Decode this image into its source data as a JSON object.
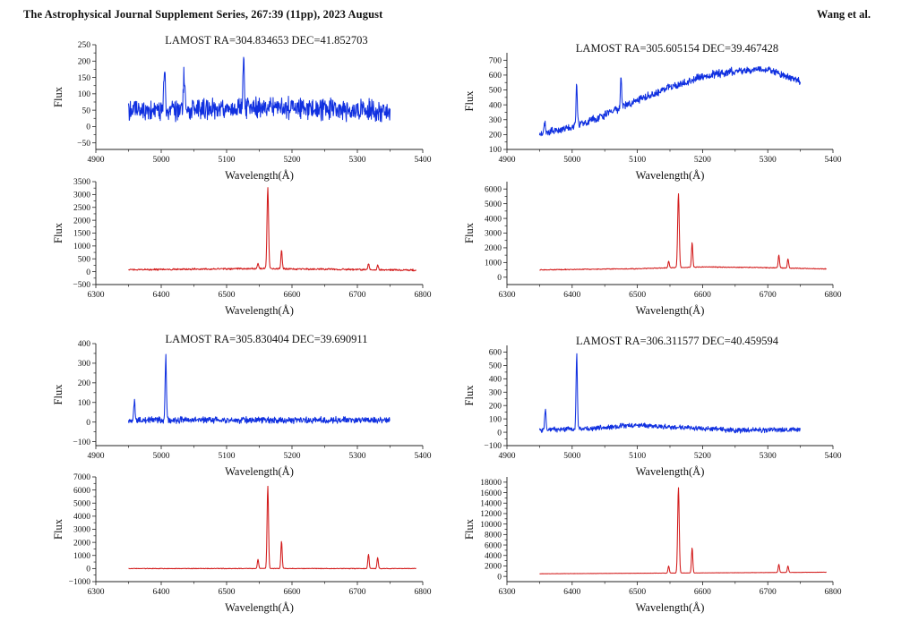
{
  "header": {
    "journal": "The Astrophysical Journal Supplement Series, 267:39 (11pp), 2023 August",
    "authors": "Wang et al."
  },
  "colors": {
    "blue": "#1030e0",
    "red": "#d21a1a",
    "axis": "#222222"
  },
  "chart_data": [
    {
      "type": "line",
      "id": "p1-blue",
      "title": "LAMOST  RA=304.834653  DEC=41.852703",
      "xlabel": "Wavelength(Å)",
      "ylabel": "Flux",
      "xlim": [
        4900,
        5400
      ],
      "ylim": [
        -70,
        250
      ],
      "xticks": [
        4900,
        5000,
        5100,
        5200,
        5300,
        5400
      ],
      "yticks": [
        -50,
        0,
        50,
        100,
        150,
        200,
        250
      ],
      "series": [
        {
          "name": "spectrum",
          "color": "blue",
          "x_range": [
            4950,
            5350
          ],
          "baseline": [
            [
              4950,
              45
            ],
            [
              5150,
              60
            ],
            [
              5350,
              45
            ]
          ],
          "noise": 28,
          "seed": 11,
          "lines": [
            [
              5005,
              175,
              1.2
            ],
            [
              5035,
              150,
              1.2
            ],
            [
              5126,
              215,
              1.0
            ]
          ]
        }
      ]
    },
    {
      "type": "line",
      "id": "p1-red",
      "xlabel": "Wavelength(Å)",
      "ylabel": "Flux",
      "xlim": [
        6300,
        6800
      ],
      "ylim": [
        -500,
        3500
      ],
      "xticks": [
        6300,
        6400,
        6500,
        6600,
        6700,
        6800
      ],
      "yticks": [
        -500,
        0,
        500,
        1000,
        1500,
        2000,
        2500,
        3000,
        3500
      ],
      "series": [
        {
          "name": "spectrum",
          "color": "red",
          "x_range": [
            6350,
            6790
          ],
          "baseline": [
            [
              6350,
              80
            ],
            [
              6550,
              120
            ],
            [
              6790,
              60
            ]
          ],
          "noise": 30,
          "seed": 12,
          "lines": [
            [
              6548,
              320,
              1.0
            ],
            [
              6563,
              3250,
              1.2
            ],
            [
              6584,
              850,
              1.0
            ],
            [
              6717,
              320,
              1.0
            ],
            [
              6731,
              260,
              1.0
            ]
          ]
        }
      ]
    },
    {
      "type": "line",
      "id": "p2-blue",
      "title": "LAMOST  RA=305.605154  DEC=39.467428",
      "xlabel": "Wavelength(Å)",
      "ylabel": "Flux",
      "xlim": [
        4900,
        5400
      ],
      "ylim": [
        100,
        750
      ],
      "xticks": [
        4900,
        5000,
        5100,
        5200,
        5300,
        5400
      ],
      "yticks": [
        100,
        200,
        300,
        400,
        500,
        600,
        700
      ],
      "series": [
        {
          "name": "spectrum",
          "color": "blue",
          "x_range": [
            4950,
            5350
          ],
          "baseline": [
            [
              4950,
              210
            ],
            [
              5000,
              250
            ],
            [
              5050,
              330
            ],
            [
              5100,
              430
            ],
            [
              5150,
              520
            ],
            [
              5200,
              590
            ],
            [
              5250,
              630
            ],
            [
              5300,
              640
            ],
            [
              5350,
              560
            ]
          ],
          "noise": 22,
          "seed": 21,
          "lines": [
            [
              4958,
              280,
              1.0
            ],
            [
              5007,
              540,
              1.0
            ],
            [
              5075,
              580,
              1.0
            ]
          ]
        }
      ]
    },
    {
      "type": "line",
      "id": "p2-red",
      "xlabel": "Wavelength(Å)",
      "ylabel": "Flux",
      "xlim": [
        6300,
        6800
      ],
      "ylim": [
        -500,
        6500
      ],
      "xticks": [
        6300,
        6400,
        6500,
        6600,
        6700,
        6800
      ],
      "yticks": [
        0,
        1000,
        2000,
        3000,
        4000,
        5000,
        6000
      ],
      "series": [
        {
          "name": "spectrum",
          "color": "red",
          "x_range": [
            6350,
            6790
          ],
          "baseline": [
            [
              6350,
              500
            ],
            [
              6500,
              580
            ],
            [
              6600,
              700
            ],
            [
              6700,
              650
            ],
            [
              6790,
              560
            ]
          ],
          "noise": 25,
          "seed": 22,
          "lines": [
            [
              6548,
              1100,
              1.0
            ],
            [
              6563,
              5700,
              1.2
            ],
            [
              6584,
              2350,
              1.0
            ],
            [
              6717,
              1500,
              1.0
            ],
            [
              6731,
              1250,
              1.0
            ]
          ]
        }
      ]
    },
    {
      "type": "line",
      "id": "p3-blue",
      "title": "LAMOST  RA=305.830404  DEC=39.690911",
      "xlabel": "Wavelength(Å)",
      "ylabel": "Flux",
      "xlim": [
        4900,
        5400
      ],
      "ylim": [
        -120,
        400
      ],
      "xticks": [
        4900,
        5000,
        5100,
        5200,
        5300,
        5400
      ],
      "yticks": [
        -100,
        0,
        100,
        200,
        300,
        400
      ],
      "series": [
        {
          "name": "spectrum",
          "color": "blue",
          "x_range": [
            4950,
            5350
          ],
          "baseline": [
            [
              4950,
              10
            ],
            [
              5350,
              10
            ]
          ],
          "noise": 14,
          "seed": 31,
          "lines": [
            [
              4959,
              110,
              1.0
            ],
            [
              5007,
              330,
              1.0
            ]
          ]
        }
      ]
    },
    {
      "type": "line",
      "id": "p3-red",
      "xlabel": "Wavelength(Å)",
      "ylabel": "Flux",
      "xlim": [
        6300,
        6800
      ],
      "ylim": [
        -1000,
        7000
      ],
      "xticks": [
        6300,
        6400,
        6500,
        6600,
        6700,
        6800
      ],
      "yticks": [
        -1000,
        0,
        1000,
        2000,
        3000,
        4000,
        5000,
        6000,
        7000
      ],
      "series": [
        {
          "name": "spectrum",
          "color": "red",
          "x_range": [
            6350,
            6790
          ],
          "baseline": [
            [
              6350,
              0
            ],
            [
              6790,
              0
            ]
          ],
          "noise": 20,
          "seed": 32,
          "lines": [
            [
              6548,
              700,
              1.0
            ],
            [
              6563,
              6300,
              1.1
            ],
            [
              6584,
              2100,
              1.0
            ],
            [
              6717,
              1100,
              1.0
            ],
            [
              6731,
              850,
              1.0
            ]
          ]
        }
      ]
    },
    {
      "type": "line",
      "id": "p4-blue",
      "title": "LAMOST  RA=306.311577  DEC=40.459594",
      "xlabel": "Wavelength(Å)",
      "ylabel": "Flux",
      "xlim": [
        4900,
        5400
      ],
      "ylim": [
        -100,
        650
      ],
      "xticks": [
        4900,
        5000,
        5100,
        5200,
        5300,
        5400
      ],
      "yticks": [
        -100,
        0,
        100,
        200,
        300,
        400,
        500,
        600
      ],
      "series": [
        {
          "name": "spectrum",
          "color": "blue",
          "x_range": [
            4950,
            5350
          ],
          "baseline": [
            [
              4950,
              15
            ],
            [
              5050,
              35
            ],
            [
              5100,
              55
            ],
            [
              5150,
              40
            ],
            [
              5250,
              15
            ],
            [
              5350,
              20
            ]
          ],
          "noise": 16,
          "seed": 41,
          "lines": [
            [
              4959,
              180,
              1.0
            ],
            [
              5007,
              585,
              1.0
            ]
          ]
        }
      ]
    },
    {
      "type": "line",
      "id": "p4-red",
      "xlabel": "Wavelength(Å)",
      "ylabel": "Flux",
      "xlim": [
        6300,
        6800
      ],
      "ylim": [
        -1000,
        19000
      ],
      "xticks": [
        6300,
        6400,
        6500,
        6600,
        6700,
        6800
      ],
      "yticks": [
        0,
        2000,
        4000,
        6000,
        8000,
        10000,
        12000,
        14000,
        16000,
        18000
      ],
      "series": [
        {
          "name": "spectrum",
          "color": "red",
          "x_range": [
            6350,
            6790
          ],
          "baseline": [
            [
              6350,
              500
            ],
            [
              6790,
              800
            ]
          ],
          "noise": 20,
          "seed": 42,
          "lines": [
            [
              6548,
              2000,
              1.0
            ],
            [
              6563,
              17000,
              1.2
            ],
            [
              6584,
              5500,
              1.0
            ],
            [
              6717,
              2300,
              1.0
            ],
            [
              6731,
              2000,
              1.0
            ]
          ]
        }
      ]
    }
  ]
}
